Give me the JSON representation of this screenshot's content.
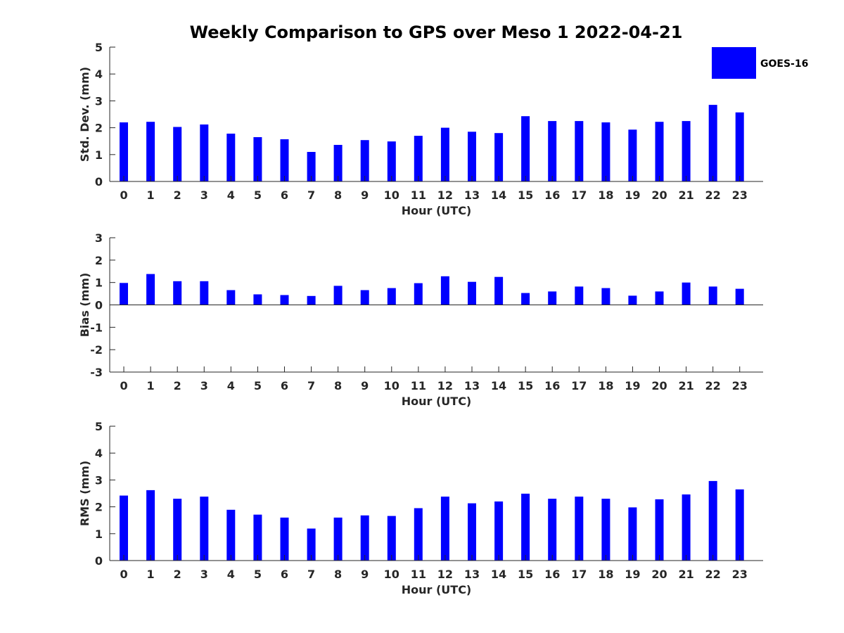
{
  "title": "Weekly Comparison to GPS over Meso 1 2022-04-21",
  "legend": {
    "label": "GOES-16",
    "color": "#0000ff",
    "placement": "top-right"
  },
  "bar_color": "#0000ff",
  "chart_data": [
    {
      "type": "bar",
      "name": "std-dev",
      "xlabel": "Hour (UTC)",
      "ylabel": "Std. Dev. (mm)",
      "ylim": [
        0,
        5
      ],
      "yticks": [
        0,
        1,
        2,
        3,
        4,
        5
      ],
      "categories": [
        "0",
        "1",
        "2",
        "3",
        "4",
        "5",
        "6",
        "7",
        "8",
        "9",
        "10",
        "11",
        "12",
        "13",
        "14",
        "15",
        "16",
        "17",
        "18",
        "19",
        "20",
        "21",
        "22",
        "23"
      ],
      "series": [
        {
          "name": "GOES-16",
          "values": [
            2.2,
            2.22,
            2.03,
            2.12,
            1.78,
            1.65,
            1.57,
            1.1,
            1.36,
            1.54,
            1.49,
            1.7,
            2.0,
            1.85,
            1.8,
            2.43,
            2.25,
            2.25,
            2.2,
            1.93,
            2.22,
            2.25,
            2.85,
            2.57
          ]
        }
      ]
    },
    {
      "type": "bar",
      "name": "bias",
      "xlabel": "Hour (UTC)",
      "ylabel": "Bias (mm)",
      "ylim": [
        -3,
        3
      ],
      "yticks": [
        -3,
        -2,
        -1,
        0,
        1,
        2,
        3
      ],
      "categories": [
        "0",
        "1",
        "2",
        "3",
        "4",
        "5",
        "6",
        "7",
        "8",
        "9",
        "10",
        "11",
        "12",
        "13",
        "14",
        "15",
        "16",
        "17",
        "18",
        "19",
        "20",
        "21",
        "22",
        "23"
      ],
      "series": [
        {
          "name": "GOES-16",
          "values": [
            0.98,
            1.38,
            1.06,
            1.06,
            0.66,
            0.47,
            0.44,
            0.4,
            0.85,
            0.66,
            0.75,
            0.97,
            1.28,
            1.03,
            1.25,
            0.53,
            0.6,
            0.82,
            0.75,
            0.41,
            0.6,
            1.0,
            0.82,
            0.72
          ]
        }
      ]
    },
    {
      "type": "bar",
      "name": "rms",
      "xlabel": "Hour (UTC)",
      "ylabel": "RMS (mm)",
      "ylim": [
        0,
        5
      ],
      "yticks": [
        0,
        1,
        2,
        3,
        4,
        5
      ],
      "categories": [
        "0",
        "1",
        "2",
        "3",
        "4",
        "5",
        "6",
        "7",
        "8",
        "9",
        "10",
        "11",
        "12",
        "13",
        "14",
        "15",
        "16",
        "17",
        "18",
        "19",
        "20",
        "21",
        "22",
        "23"
      ],
      "series": [
        {
          "name": "GOES-16",
          "values": [
            2.42,
            2.62,
            2.3,
            2.38,
            1.89,
            1.71,
            1.6,
            1.19,
            1.6,
            1.68,
            1.66,
            1.95,
            2.38,
            2.13,
            2.2,
            2.49,
            2.3,
            2.38,
            2.3,
            1.98,
            2.28,
            2.46,
            2.96,
            2.65
          ]
        }
      ]
    }
  ]
}
